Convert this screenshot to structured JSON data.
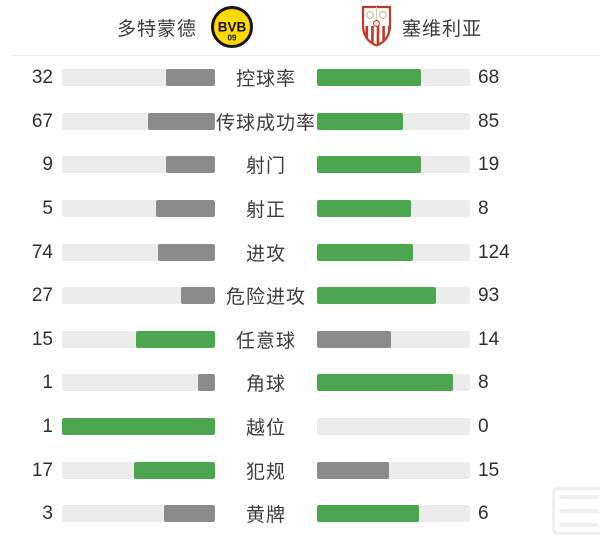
{
  "header": {
    "home": {
      "name": "多特蒙德",
      "badge_text": "BVB",
      "badge_sub": "09"
    },
    "away": {
      "name": "塞维利亚"
    }
  },
  "icons": {
    "home_badge": "bvb-dortmund-club-badge",
    "away_badge": "sevilla-club-crest",
    "watermark": "faint-app-watermark"
  },
  "colors": {
    "leading_fill": "#4ba64f",
    "trailing_fill": "#8b8b8b",
    "track": "#ececec",
    "divider": "#ececec",
    "text": "#2e2e2e",
    "badge_yellow": "#ffd900",
    "crest_red": "#c0392b"
  },
  "stats": [
    {
      "label": "控球率",
      "home": 32,
      "away": 68
    },
    {
      "label": "传球成功率",
      "home": 67,
      "away": 85
    },
    {
      "label": "射门",
      "home": 9,
      "away": 19
    },
    {
      "label": "射正",
      "home": 5,
      "away": 8
    },
    {
      "label": "进攻",
      "home": 74,
      "away": 124
    },
    {
      "label": "危险进攻",
      "home": 27,
      "away": 93
    },
    {
      "label": "任意球",
      "home": 15,
      "away": 14
    },
    {
      "label": "角球",
      "home": 1,
      "away": 8
    },
    {
      "label": "越位",
      "home": 1,
      "away": 0
    },
    {
      "label": "犯规",
      "home": 17,
      "away": 15
    },
    {
      "label": "黄牌",
      "home": 3,
      "away": 6
    }
  ],
  "chart_data": {
    "type": "bar",
    "subtype": "paired-horizontal-match-stats",
    "title": "多特蒙德 vs 塞维利亚",
    "categories": [
      "控球率",
      "传球成功率",
      "射门",
      "射正",
      "进攻",
      "危险进攻",
      "任意球",
      "角球",
      "越位",
      "犯规",
      "黄牌"
    ],
    "series": [
      {
        "name": "多特蒙德",
        "values": [
          32,
          67,
          9,
          5,
          74,
          27,
          15,
          1,
          1,
          17,
          3
        ]
      },
      {
        "name": "塞维利亚",
        "values": [
          68,
          85,
          19,
          8,
          124,
          93,
          14,
          8,
          0,
          15,
          6
        ]
      }
    ],
    "bar_scaling": "fill width = value / (home + away) share of track",
    "highlight_rule": "higher value colored green, lower value gray, zero shows empty track",
    "legend_position": "top",
    "grid": false
  }
}
